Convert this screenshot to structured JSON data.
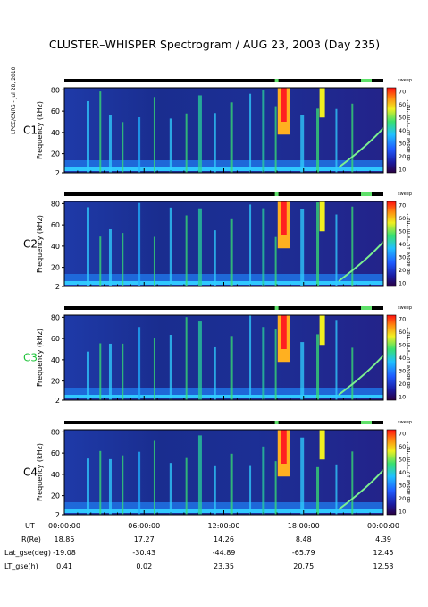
{
  "title": "CLUSTER–WHISPER Spectrogram / AUG 23, 2003 (Day 235)",
  "side_credit": "LPCE/CNRS - Jul 28, 2010",
  "colorbar": {
    "label": "dB above 10⁻⁸V²m⁻²Hz⁻¹",
    "ticks": [
      "70",
      "60",
      "50",
      "40",
      "30",
      "20",
      "10"
    ],
    "tag": "sweep"
  },
  "footer": {
    "rows": [
      {
        "label": "UT",
        "values": [
          "00:00:00",
          "06:00:00",
          "12:00:00",
          "18:00:00",
          "00:00:00"
        ]
      },
      {
        "label": "R(Re)",
        "values": [
          "18.85",
          "17.27",
          "14.26",
          "8.48",
          "4.39"
        ]
      },
      {
        "label": "Lat_gse(deg)",
        "values": [
          "-19.08",
          "-30.43",
          "-44.89",
          "-65.79",
          "12.45"
        ]
      },
      {
        "label": "LT_gse(h)",
        "values": [
          "0.41",
          "0.02",
          "23.35",
          "20.75",
          "12.53"
        ]
      }
    ]
  },
  "chart_data": [
    {
      "type": "heatmap",
      "panel": "C1",
      "label_color": "#000000",
      "ylabel": "Frequency (kHz)",
      "yticks": [
        2,
        20,
        40,
        60,
        80
      ],
      "ylim": [
        2,
        82
      ],
      "xlim": [
        "00:00:00",
        "24:00:00"
      ],
      "colorscale": {
        "min": 10,
        "max": 70,
        "unit": "dB"
      },
      "description_series": [
        {
          "name": "background",
          "value": 20
        },
        {
          "name": "intense emission near 17h",
          "value": 70
        }
      ]
    },
    {
      "type": "heatmap",
      "panel": "C2",
      "label_color": "#000000",
      "ylabel": "Frequency (kHz)",
      "yticks": [
        2,
        20,
        40,
        60,
        80
      ],
      "ylim": [
        2,
        82
      ],
      "xlim": [
        "00:00:00",
        "24:00:00"
      ],
      "colorscale": {
        "min": 10,
        "max": 70,
        "unit": "dB"
      }
    },
    {
      "type": "heatmap",
      "panel": "C3",
      "label_color": "#1fc33a",
      "ylabel": "Frequency (kHz)",
      "yticks": [
        2,
        20,
        40,
        60,
        80
      ],
      "ylim": [
        2,
        82
      ],
      "xlim": [
        "00:00:00",
        "24:00:00"
      ],
      "colorscale": {
        "min": 10,
        "max": 70,
        "unit": "dB"
      }
    },
    {
      "type": "heatmap",
      "panel": "C4",
      "label_color": "#000000",
      "ylabel": "Frequency (kHz)",
      "yticks": [
        2,
        20,
        40,
        60,
        80
      ],
      "ylim": [
        2,
        82
      ],
      "xlim": [
        "00:00:00",
        "24:00:00"
      ],
      "colorscale": {
        "min": 10,
        "max": 70,
        "unit": "dB"
      }
    }
  ]
}
